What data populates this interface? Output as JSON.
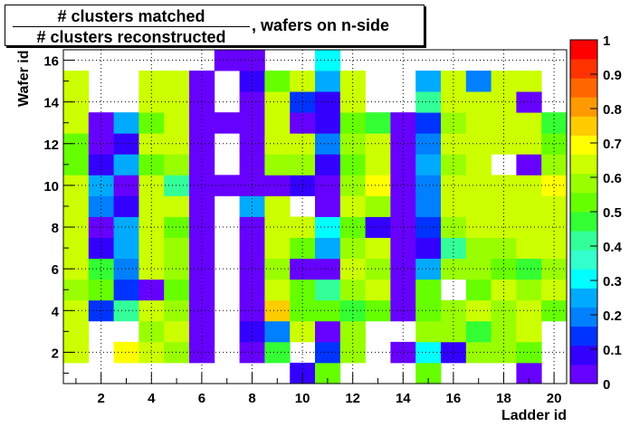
{
  "chart_data": {
    "type": "heatmap",
    "title_numerator": "# clusters matched",
    "title_denominator": "# clusters reconstructed",
    "title_suffix": ", wafers on n-side",
    "xlabel": "Ladder id",
    "ylabel": "Wafer id",
    "x_range": [
      0.5,
      20.5
    ],
    "y_range": [
      0.5,
      16.5
    ],
    "x_ticks": [
      2,
      4,
      6,
      8,
      10,
      12,
      14,
      16,
      18,
      20
    ],
    "y_ticks": [
      2,
      4,
      6,
      8,
      10,
      12,
      14,
      16
    ],
    "z_range": [
      0,
      1
    ],
    "z_ticks": [
      "0",
      "0.1",
      "0.2",
      "0.3",
      "0.4",
      "0.5",
      "0.6",
      "0.7",
      "0.8",
      "0.9",
      "1"
    ],
    "colormap": [
      "#6600ff",
      "#3300ff",
      "#0033ff",
      "#0080ff",
      "#00aaff",
      "#00ffff",
      "#33ffcc",
      "#33ff99",
      "#33ff33",
      "#66ff00",
      "#99ff00",
      "#ccff00",
      "#ffff00",
      "#ffcc00",
      "#ff9900",
      "#ff6600",
      "#ff3300",
      "#ff0000"
    ],
    "grid": true,
    "values": [
      [
        null,
        null,
        null,
        null,
        null,
        null,
        null,
        null,
        null,
        0.1,
        0.52,
        null,
        null,
        null,
        0.5,
        null,
        null,
        null,
        0.05,
        null
      ],
      [
        0.65,
        null,
        0.68,
        0.62,
        0.6,
        0.05,
        null,
        0.05,
        0.45,
        null,
        0.15,
        0.6,
        null,
        0.05,
        0.3,
        0.1,
        0.6,
        0.6,
        0.55,
        null
      ],
      [
        0.65,
        null,
        null,
        0.6,
        0.65,
        0.05,
        null,
        0.1,
        0.2,
        0.65,
        0.05,
        0.6,
        null,
        null,
        0.6,
        0.6,
        0.45,
        0.6,
        0.65,
        null
      ],
      [
        0.62,
        0.15,
        0.4,
        0.62,
        0.6,
        0.05,
        null,
        0.05,
        0.75,
        0.55,
        0.55,
        0.45,
        0.55,
        0.05,
        0.55,
        0.6,
        0.65,
        0.6,
        0.62,
        0.55
      ],
      [
        0.6,
        0.55,
        0.15,
        0.05,
        0.55,
        0.05,
        null,
        0.05,
        0.62,
        0.55,
        0.4,
        0.6,
        0.65,
        0.05,
        0.55,
        null,
        0.55,
        0.65,
        0.6,
        0.62
      ],
      [
        0.62,
        0.45,
        0.2,
        0.62,
        0.6,
        0.05,
        null,
        0.05,
        0.6,
        0.05,
        0.05,
        0.62,
        0.58,
        0.05,
        0.25,
        0.6,
        0.6,
        0.55,
        0.45,
        0.6
      ],
      [
        0.62,
        0.1,
        0.25,
        0.65,
        0.6,
        0.05,
        null,
        0.05,
        0.65,
        0.55,
        0.25,
        0.58,
        0.62,
        0.05,
        0.1,
        0.4,
        0.6,
        0.6,
        0.62,
        0.65
      ],
      [
        0.65,
        0.05,
        0.25,
        0.62,
        0.55,
        0.05,
        null,
        0.05,
        0.62,
        0.65,
        0.32,
        0.55,
        0.1,
        0.05,
        0.15,
        0.6,
        0.62,
        0.65,
        0.62,
        0.65
      ],
      [
        0.65,
        0.2,
        0.1,
        0.65,
        0.62,
        0.05,
        null,
        0.25,
        0.62,
        null,
        0.05,
        0.62,
        0.58,
        0.05,
        0.2,
        0.62,
        0.65,
        0.65,
        0.62,
        0.65
      ],
      [
        0.62,
        0.25,
        0.05,
        0.62,
        0.4,
        0.05,
        0.05,
        0.05,
        0.05,
        0.1,
        0.05,
        0.6,
        0.72,
        0.05,
        0.2,
        0.62,
        0.65,
        0.65,
        0.65,
        0.72
      ],
      [
        0.55,
        0.1,
        0.25,
        0.55,
        0.6,
        0.05,
        null,
        0.05,
        0.6,
        0.6,
        0.1,
        0.55,
        0.62,
        0.05,
        0.25,
        0.58,
        0.65,
        null,
        0.05,
        0.6
      ],
      [
        0.55,
        0.05,
        0.1,
        0.62,
        0.62,
        0.05,
        null,
        0.05,
        0.62,
        0.65,
        0.2,
        0.6,
        0.62,
        0.05,
        0.2,
        0.62,
        0.62,
        0.62,
        0.65,
        0.55
      ],
      [
        0.62,
        0.05,
        0.25,
        0.55,
        0.62,
        0.05,
        0.05,
        0.05,
        0.62,
        0.05,
        0.1,
        0.55,
        0.45,
        0.05,
        0.15,
        0.6,
        0.62,
        0.62,
        0.62,
        0.45
      ],
      [
        0.62,
        null,
        null,
        0.62,
        0.62,
        0.05,
        null,
        0.05,
        0.62,
        0.15,
        0.1,
        0.62,
        null,
        null,
        0.4,
        0.62,
        0.62,
        0.65,
        0.05,
        null
      ],
      [
        0.62,
        null,
        null,
        0.65,
        0.62,
        0.05,
        null,
        0.1,
        0.55,
        0.62,
        0.25,
        0.62,
        null,
        null,
        0.25,
        0.62,
        0.2,
        0.62,
        0.62,
        null
      ],
      [
        null,
        null,
        null,
        null,
        null,
        null,
        0.05,
        0.05,
        null,
        null,
        0.3,
        null,
        null,
        null,
        null,
        null,
        null,
        null,
        null,
        null
      ]
    ]
  }
}
